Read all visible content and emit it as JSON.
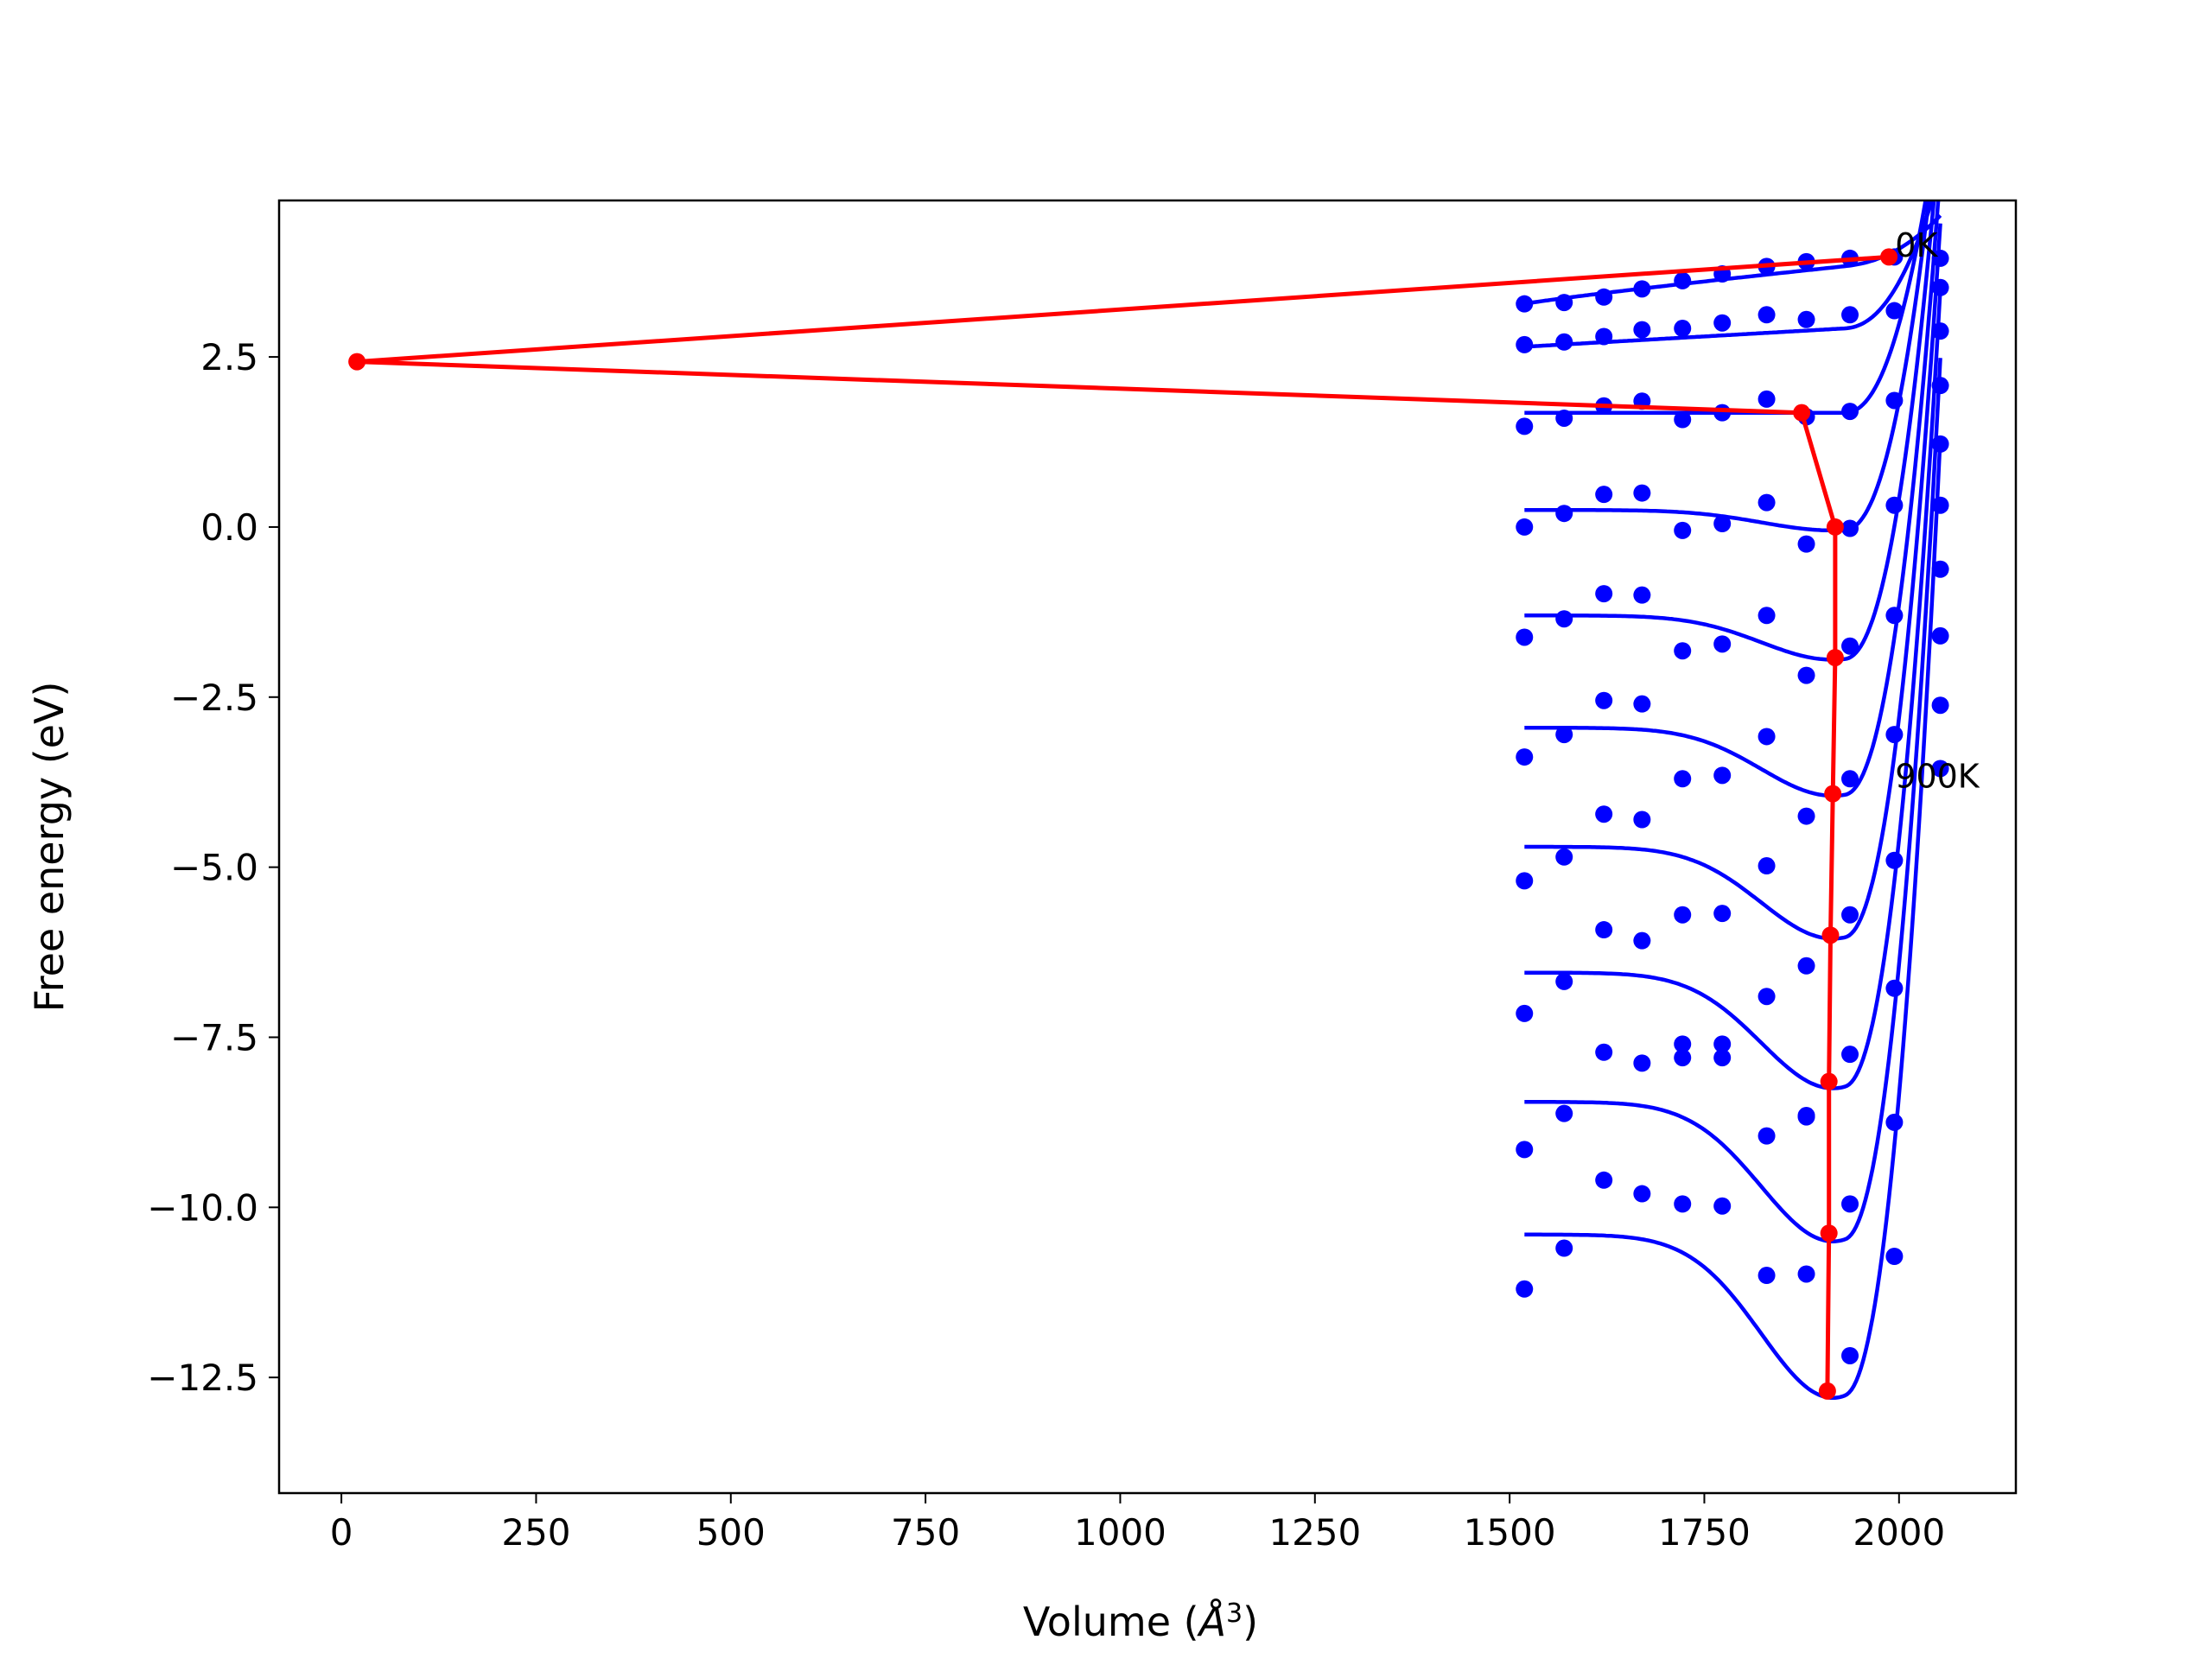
{
  "chart_data": {
    "type": "scatter",
    "title": "",
    "xlabel": "Volume (Å³)",
    "xlabel_base": "Volume (",
    "xlabel_symbol": "Å",
    "xlabel_sup": "3",
    "xlabel_close": ")",
    "ylabel": "Free energy (eV)",
    "xlim": [
      -80,
      2150
    ],
    "ylim": [
      -14.2,
      4.8
    ],
    "x_ticks": [
      0,
      250,
      500,
      750,
      1000,
      1250,
      1500,
      1750,
      2000
    ],
    "x_tick_labels": [
      "0",
      "250",
      "500",
      "750",
      "1000",
      "1250",
      "1500",
      "1750",
      "2000"
    ],
    "y_ticks": [
      2.5,
      0.0,
      -2.5,
      -5.0,
      -7.5,
      -10.0,
      -12.5
    ],
    "y_tick_labels": [
      "2.5",
      "0.0",
      "−2.5",
      "−5.0",
      "−7.5",
      "−10.0",
      "−12.5"
    ],
    "grid": false,
    "legend": "none",
    "colors": {
      "points": "#0000ff",
      "fits": "#0000ff",
      "minima": "#ff0000"
    },
    "annotations": [
      {
        "text": "0K",
        "x": 1995,
        "y": 4.15
      },
      {
        "text": "900K",
        "x": 1995,
        "y": -3.65
      }
    ],
    "x_samples": [
      1519,
      1570,
      1621,
      1670,
      1722,
      1773,
      1830,
      1881,
      1937,
      1994,
      2053
    ],
    "series": [
      {
        "temperature_K": 0,
        "points": [
          3.28,
          3.3,
          3.38,
          3.5,
          3.62,
          3.72,
          3.83,
          3.9,
          3.95,
          3.97,
          3.95
        ],
        "fit": {
          "a": 3.28,
          "depth": 0.0,
          "vmin": 2000,
          "w": 130,
          "rise": 0.6
        }
      },
      {
        "temperature_K": 100,
        "points": [
          2.68,
          2.72,
          2.8,
          2.9,
          2.92,
          3.0,
          3.12,
          3.05,
          3.12,
          3.18,
          3.52
        ],
        "fit": {
          "a": 2.65,
          "depth": 0.0,
          "vmin": 2000,
          "w": 130,
          "rise": 2.2
        }
      },
      {
        "temperature_K": 200,
        "points": [
          1.48,
          1.6,
          1.78,
          1.85,
          1.58,
          1.68,
          1.88,
          1.62,
          1.7,
          1.86,
          2.88
        ],
        "fit": {
          "a": 1.68,
          "depth": 0.0,
          "vmin": 1960,
          "w": 130,
          "rise": 4.5
        }
      },
      {
        "temperature_K": 300,
        "points": [
          0.0,
          0.2,
          0.48,
          0.5,
          -0.05,
          0.05,
          0.36,
          -0.25,
          -0.02,
          0.32,
          2.08
        ],
        "fit": {
          "a": 0.25,
          "depth": 0.3,
          "vmin": 1915,
          "w": 130,
          "rise": 6.2
        }
      },
      {
        "temperature_K": 400,
        "points": [
          -1.62,
          -1.35,
          -0.98,
          -1.0,
          -1.82,
          -1.72,
          -1.3,
          -2.18,
          -1.75,
          -1.3,
          1.22
        ],
        "fit": {
          "a": -1.3,
          "depth": 0.65,
          "vmin": 1915,
          "w": 130,
          "rise": 7.4
        }
      },
      {
        "temperature_K": 500,
        "points": [
          -3.38,
          -3.05,
          -2.55,
          -2.6,
          -3.7,
          -3.65,
          -3.08,
          -4.25,
          -3.7,
          -3.05,
          0.32
        ],
        "fit": {
          "a": -2.95,
          "depth": 1.0,
          "vmin": 1915,
          "w": 130,
          "rise": 8.5
        }
      },
      {
        "temperature_K": 600,
        "points": [
          -5.2,
          -4.85,
          -4.22,
          -4.3,
          -5.7,
          -5.68,
          -4.98,
          -6.45,
          -5.7,
          -4.9,
          -0.62
        ],
        "fit": {
          "a": -4.7,
          "depth": 1.35,
          "vmin": 1915,
          "w": 130,
          "rise": 9.6
        }
      },
      {
        "temperature_K": 700,
        "points": [
          -7.15,
          -6.68,
          -5.92,
          -6.08,
          -7.6,
          -7.6,
          -6.9,
          -8.65,
          -7.75,
          -6.78,
          -1.6
        ],
        "fit": {
          "a": -6.55,
          "depth": 1.7,
          "vmin": 1915,
          "w": 130,
          "rise": 10.6
        }
      },
      {
        "temperature_K": 800,
        "points": [
          -9.15,
          -8.62,
          -7.72,
          -7.88,
          -7.8,
          -7.8,
          -8.95,
          -8.67,
          -9.95,
          -8.75,
          -2.62
        ],
        "fit": {
          "a": -8.45,
          "depth": 2.05,
          "vmin": 1915,
          "w": 130,
          "rise": 11.6
        }
      },
      {
        "temperature_K": 900,
        "points": [
          -11.2,
          -10.6,
          -9.6,
          -9.8,
          -9.95,
          -9.98,
          -11.0,
          -10.98,
          -12.18,
          -10.72,
          -3.55
        ],
        "fit": {
          "a": -10.4,
          "depth": 2.4,
          "vmin": 1915,
          "w": 130,
          "rise": 12.5
        }
      }
    ],
    "minima_curve": {
      "x": [
        1987,
        20,
        1875,
        1918,
        1918,
        1915,
        1912,
        1910,
        1910,
        1908
      ],
      "y": [
        3.97,
        2.43,
        1.68,
        0.0,
        -1.92,
        -3.92,
        -6.0,
        -8.15,
        -10.38,
        -12.7
      ]
    }
  }
}
